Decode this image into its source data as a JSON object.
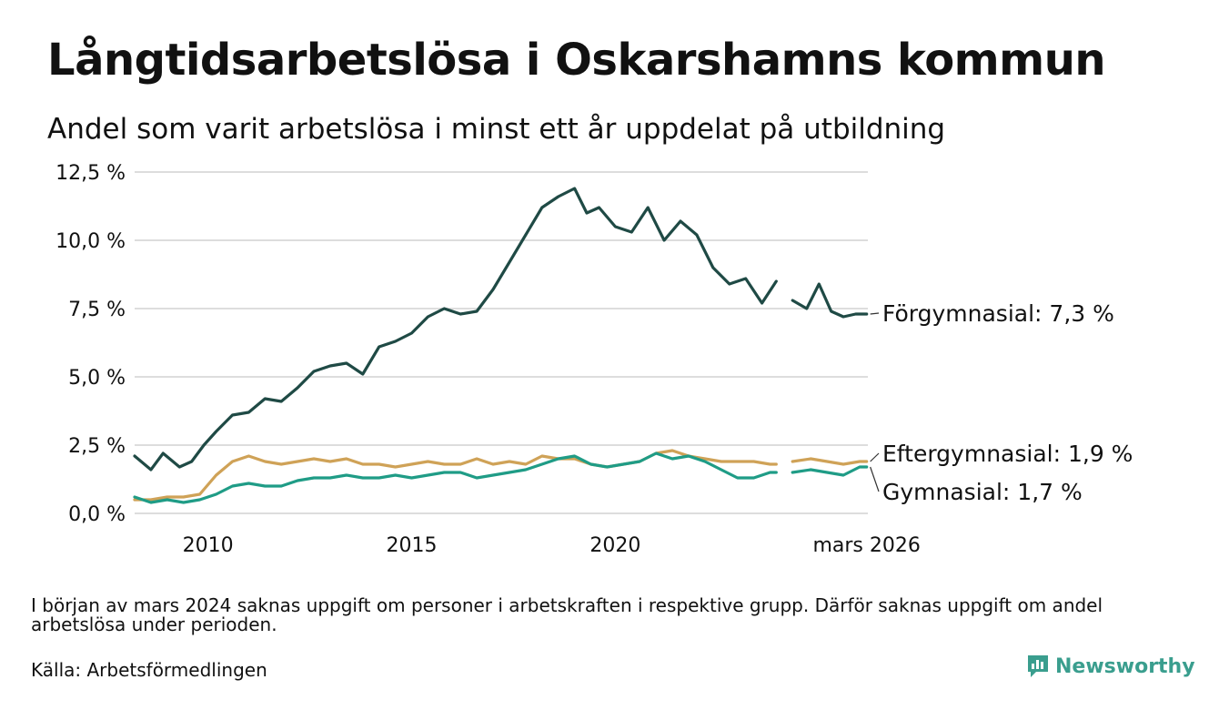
{
  "title": "Långtidsarbetslösa i Oskarshamns kommun",
  "subtitle": "Andel som varit arbetslösa i minst ett år uppdelat på utbildning",
  "note": "I början av mars 2024 saknas uppgift om personer i arbetskraften i respektive grupp. Därför saknas uppgift om andel arbetslösa under perioden.",
  "source": "Källa: Arbetsförmedlingen",
  "brand": "Newsworthy",
  "colors": {
    "forgymnasial": "#1f4a45",
    "eftergymnasial": "#cfa257",
    "gymnasial": "#1f9c86",
    "grid": "#dddddd",
    "brand": "#3a9e8e"
  },
  "chart_data": {
    "type": "line",
    "title": "Långtidsarbetslösa i Oskarshamns kommun",
    "xlabel": "",
    "ylabel": "",
    "xlim": [
      2008.2,
      2026.2
    ],
    "ylim": [
      0,
      12.5
    ],
    "yticks": [
      0,
      2.5,
      5,
      7.5,
      10,
      12.5
    ],
    "ytick_labels": [
      "0,0 %",
      "2,5 %",
      "5,0 %",
      "7,5 %",
      "10,0 %",
      "12,5 %"
    ],
    "xticks": [
      2010,
      2015,
      2020,
      2026.17
    ],
    "xtick_labels": [
      "2010",
      "2015",
      "2020",
      "mars 2026"
    ],
    "gap": [
      2023.95,
      2024.35
    ],
    "series": [
      {
        "name": "Förgymnasial",
        "end_label": "Förgymnasial: 7,3 %",
        "color": "#1f4a45",
        "x": [
          2008.2,
          2008.6,
          2008.9,
          2009.3,
          2009.6,
          2009.9,
          2010.2,
          2010.6,
          2011.0,
          2011.4,
          2011.8,
          2012.2,
          2012.6,
          2013.0,
          2013.4,
          2013.8,
          2014.2,
          2014.6,
          2015.0,
          2015.4,
          2015.8,
          2016.2,
          2016.6,
          2017.0,
          2017.4,
          2017.8,
          2018.2,
          2018.6,
          2019.0,
          2019.3,
          2019.6,
          2020.0,
          2020.4,
          2020.8,
          2021.2,
          2021.6,
          2022.0,
          2022.4,
          2022.8,
          2023.2,
          2023.6,
          2023.95,
          2024.35,
          2024.7,
          2025.0,
          2025.3,
          2025.6,
          2025.9,
          2026.17
        ],
        "values": [
          2.1,
          1.6,
          2.2,
          1.7,
          1.9,
          2.5,
          3.0,
          3.6,
          3.7,
          4.2,
          4.1,
          4.6,
          5.2,
          5.4,
          5.5,
          5.1,
          6.1,
          6.3,
          6.6,
          7.2,
          7.5,
          7.3,
          7.4,
          8.2,
          9.2,
          10.2,
          11.2,
          11.6,
          11.9,
          11.0,
          11.2,
          10.5,
          10.3,
          11.2,
          10.0,
          10.7,
          10.2,
          9.0,
          8.4,
          8.6,
          7.7,
          8.5,
          7.8,
          7.5,
          8.4,
          7.4,
          7.2,
          7.3,
          7.3
        ]
      },
      {
        "name": "Eftergymnasial",
        "end_label": "Eftergymnasial: 1,9 %",
        "color": "#cfa257",
        "x": [
          2008.2,
          2008.6,
          2009.0,
          2009.4,
          2009.8,
          2010.2,
          2010.6,
          2011.0,
          2011.4,
          2011.8,
          2012.2,
          2012.6,
          2013.0,
          2013.4,
          2013.8,
          2014.2,
          2014.6,
          2015.0,
          2015.4,
          2015.8,
          2016.2,
          2016.6,
          2017.0,
          2017.4,
          2017.8,
          2018.2,
          2018.6,
          2019.0,
          2019.4,
          2019.8,
          2020.2,
          2020.6,
          2021.0,
          2021.4,
          2021.8,
          2022.2,
          2022.6,
          2023.0,
          2023.4,
          2023.8,
          2023.95,
          2024.35,
          2024.8,
          2025.2,
          2025.6,
          2026.0,
          2026.17
        ],
        "values": [
          0.5,
          0.5,
          0.6,
          0.6,
          0.7,
          1.4,
          1.9,
          2.1,
          1.9,
          1.8,
          1.9,
          2.0,
          1.9,
          2.0,
          1.8,
          1.8,
          1.7,
          1.8,
          1.9,
          1.8,
          1.8,
          2.0,
          1.8,
          1.9,
          1.8,
          2.1,
          2.0,
          2.0,
          1.8,
          1.7,
          1.8,
          1.9,
          2.2,
          2.3,
          2.1,
          2.0,
          1.9,
          1.9,
          1.9,
          1.8,
          1.8,
          1.9,
          2.0,
          1.9,
          1.8,
          1.9,
          1.9
        ]
      },
      {
        "name": "Gymnasial",
        "end_label": "Gymnasial: 1,7 %",
        "color": "#1f9c86",
        "x": [
          2008.2,
          2008.6,
          2009.0,
          2009.4,
          2009.8,
          2010.2,
          2010.6,
          2011.0,
          2011.4,
          2011.8,
          2012.2,
          2012.6,
          2013.0,
          2013.4,
          2013.8,
          2014.2,
          2014.6,
          2015.0,
          2015.4,
          2015.8,
          2016.2,
          2016.6,
          2017.0,
          2017.4,
          2017.8,
          2018.2,
          2018.6,
          2019.0,
          2019.4,
          2019.8,
          2020.2,
          2020.6,
          2021.0,
          2021.4,
          2021.8,
          2022.2,
          2022.6,
          2023.0,
          2023.4,
          2023.8,
          2023.95,
          2024.35,
          2024.8,
          2025.2,
          2025.6,
          2026.0,
          2026.17
        ],
        "values": [
          0.6,
          0.4,
          0.5,
          0.4,
          0.5,
          0.7,
          1.0,
          1.1,
          1.0,
          1.0,
          1.2,
          1.3,
          1.3,
          1.4,
          1.3,
          1.3,
          1.4,
          1.3,
          1.4,
          1.5,
          1.5,
          1.3,
          1.4,
          1.5,
          1.6,
          1.8,
          2.0,
          2.1,
          1.8,
          1.7,
          1.8,
          1.9,
          2.2,
          2.0,
          2.1,
          1.9,
          1.6,
          1.3,
          1.3,
          1.5,
          1.5,
          1.5,
          1.6,
          1.5,
          1.4,
          1.7,
          1.7
        ]
      }
    ]
  }
}
